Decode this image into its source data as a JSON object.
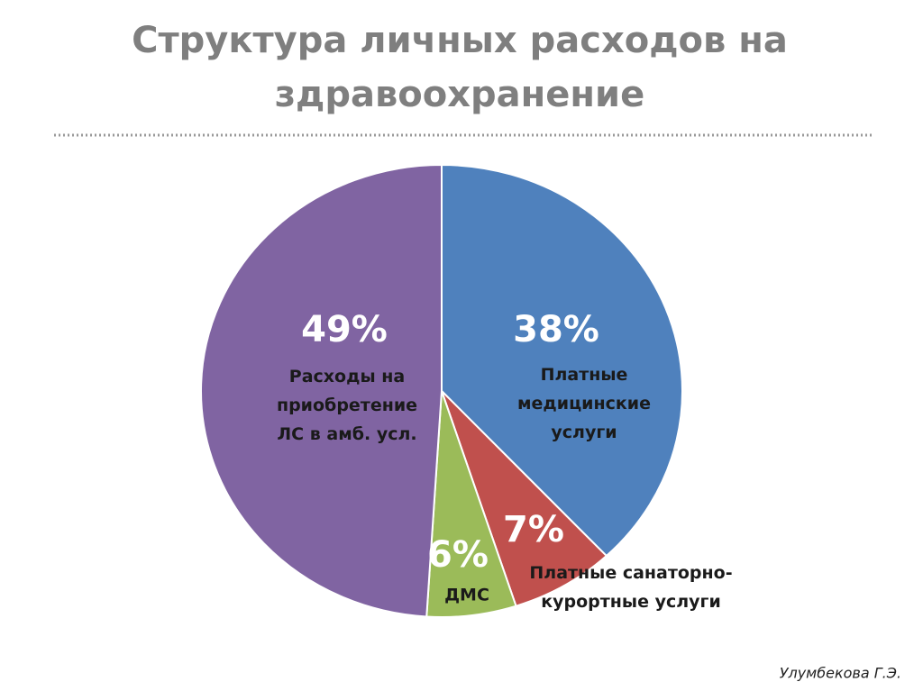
{
  "chart_data": {
    "type": "pie",
    "title": "Структура личных расходов на\nздравоохранение",
    "categories": [
      "Платные\nмедицинские\nуслуги",
      "Платные санаторно-\nкурортные услуги",
      "ДМС",
      "Расходы на\nприобретение\nЛС в амб. усл."
    ],
    "values": [
      38,
      7,
      6,
      49
    ],
    "value_labels": [
      "38%",
      "7%",
      "6%",
      "49%"
    ],
    "colors": [
      "#4f81bd",
      "#c0504d",
      "#9bbb59",
      "#8064a2"
    ],
    "author": "Улумбекова Г.Э."
  }
}
